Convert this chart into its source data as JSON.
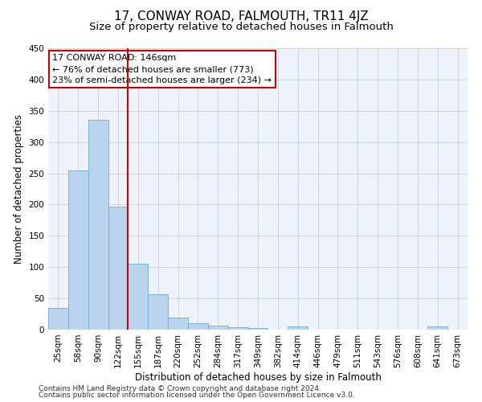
{
  "title": "17, CONWAY ROAD, FALMOUTH, TR11 4JZ",
  "subtitle": "Size of property relative to detached houses in Falmouth",
  "xlabel": "Distribution of detached houses by size in Falmouth",
  "ylabel": "Number of detached properties",
  "footnote1": "Contains HM Land Registry data © Crown copyright and database right 2024.",
  "footnote2": "Contains public sector information licensed under the Open Government Licence v3.0.",
  "categories": [
    "25sqm",
    "58sqm",
    "90sqm",
    "122sqm",
    "155sqm",
    "187sqm",
    "220sqm",
    "252sqm",
    "284sqm",
    "317sqm",
    "349sqm",
    "382sqm",
    "414sqm",
    "446sqm",
    "479sqm",
    "511sqm",
    "543sqm",
    "576sqm",
    "608sqm",
    "641sqm",
    "673sqm"
  ],
  "values": [
    35,
    254,
    335,
    197,
    105,
    57,
    19,
    10,
    6,
    4,
    2,
    0,
    5,
    0,
    0,
    0,
    0,
    0,
    0,
    5,
    0
  ],
  "bar_color": "#bad4ed",
  "bar_edge_color": "#6aaed6",
  "background_color": "#eef2fb",
  "grid_color": "#d0d0d0",
  "annotation_box_color": "#cc0000",
  "annotation_title": "17 CONWAY ROAD: 146sqm",
  "annotation_line1": "← 76% of detached houses are smaller (773)",
  "annotation_line2": "23% of semi-detached houses are larger (234) →",
  "ylim": [
    0,
    450
  ],
  "yticks": [
    0,
    50,
    100,
    150,
    200,
    250,
    300,
    350,
    400,
    450
  ],
  "red_line_x": 3.5,
  "title_fontsize": 11,
  "subtitle_fontsize": 9.5,
  "axis_label_fontsize": 8.5,
  "tick_fontsize": 7.5,
  "annotation_fontsize": 8,
  "footnote_fontsize": 6.5
}
